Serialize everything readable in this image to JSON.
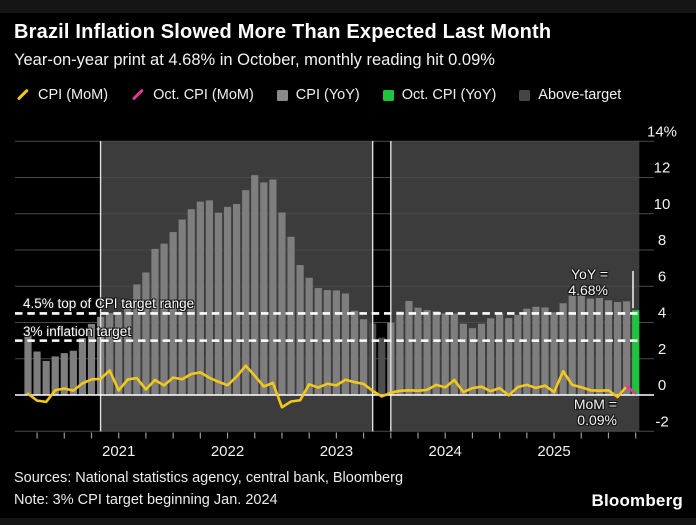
{
  "colors": {
    "background": "#000000",
    "band": "#3c3c3c",
    "grid": "#4a4a4a",
    "zero_line": "#ffffff",
    "bar": "#7e7e7e",
    "bar_muted": "#4e4e4e",
    "bar_highlight_green": "#1ec43b",
    "line_yellow": "#f3c81c",
    "line_magenta": "#e23a96",
    "axis_text": "#f2f2f2",
    "tick": "#999999",
    "vline": "#e0e0e0",
    "dashed_target": "#ffffff"
  },
  "header": {
    "title": "Brazil Inflation Slowed More Than Expected Last Month",
    "subtitle": "Year-on-year print at 4.68% in October, monthly reading hit 0.09%"
  },
  "legend": {
    "items": [
      {
        "label": "CPI (MoM)",
        "swatch": "line",
        "color": "#f3c81c"
      },
      {
        "label": "Oct. CPI (MoM)",
        "swatch": "line",
        "color": "#e23a96"
      },
      {
        "label": "CPI (YoY)",
        "swatch": "square",
        "color": "#8a8a8a"
      },
      {
        "label": "Oct. CPI (YoY)",
        "swatch": "square",
        "color": "#1ec43b"
      },
      {
        "label": "Above-target",
        "swatch": "square",
        "color": "#454545"
      }
    ]
  },
  "annotations": {
    "target_top": "4.5% top of CPI target range",
    "target_mid": "3% inflation target",
    "yoy_line1": "YoY =",
    "yoy_line2": "4.68%",
    "mom_line1": "MoM =",
    "mom_line2": "0.09%"
  },
  "footer": {
    "sources": "Sources: National statistics agency, central bank, Bloomberg",
    "note": "Note: 3% CPI target beginning Jan. 2024",
    "logo": "Bloomberg"
  },
  "chart_data": {
    "type": "bar",
    "title": "Brazil Inflation Slowed More Than Expected Last Month",
    "frequency": "monthly",
    "x_start": "2020-03",
    "x_end": "2025-10",
    "ylim": [
      -2,
      14
    ],
    "grid": true,
    "legend_position": "top",
    "yticks": {
      "values": [
        14,
        12,
        10,
        8,
        6,
        4,
        2,
        0,
        -2
      ],
      "labels": [
        "14%",
        "12",
        "10",
        "8",
        "6",
        "4",
        "2",
        "0",
        "-2"
      ]
    },
    "year_labels": [
      "2021",
      "2022",
      "2023",
      "2024",
      "2025"
    ],
    "target_lines": [
      {
        "value": 4.5,
        "label": "4.5% top of CPI target range"
      },
      {
        "value": 3.0,
        "label": "3% inflation target"
      }
    ],
    "above_target_shading": {
      "bands_month_index": [
        [
          8,
          38
        ],
        [
          40,
          67.4
        ]
      ],
      "gap_month_indices": [
        38,
        39
      ],
      "vline_month_indices": [
        8,
        38,
        40
      ]
    },
    "series": [
      {
        "name": "CPI (YoY)",
        "type": "bar",
        "values": [
          3.3,
          2.4,
          1.88,
          2.13,
          2.31,
          2.44,
          3.14,
          3.92,
          4.31,
          4.52,
          4.56,
          5.2,
          6.1,
          6.76,
          8.06,
          8.35,
          8.99,
          9.68,
          10.25,
          10.67,
          10.74,
          10.06,
          10.38,
          10.54,
          11.3,
          12.13,
          11.73,
          11.89,
          10.07,
          8.73,
          7.17,
          6.47,
          5.9,
          5.79,
          5.77,
          5.6,
          4.65,
          4.18,
          3.94,
          3.16,
          3.99,
          4.61,
          5.19,
          4.82,
          4.68,
          4.62,
          4.51,
          4.5,
          3.93,
          3.69,
          3.93,
          4.23,
          4.5,
          4.24,
          4.42,
          4.76,
          4.87,
          4.83,
          4.56,
          5.06,
          5.48,
          5.53,
          5.32,
          5.35,
          5.23,
          5.13,
          5.17,
          4.68
        ]
      },
      {
        "name": "CPI (MoM)",
        "type": "line",
        "values": [
          0.07,
          -0.31,
          -0.38,
          0.26,
          0.36,
          0.24,
          0.64,
          0.86,
          0.89,
          1.35,
          0.25,
          0.86,
          0.93,
          0.31,
          0.83,
          0.53,
          0.96,
          0.87,
          1.16,
          1.25,
          0.95,
          0.73,
          0.54,
          1.01,
          1.62,
          1.06,
          0.47,
          0.67,
          -0.68,
          -0.36,
          -0.29,
          0.59,
          0.41,
          0.62,
          0.53,
          0.84,
          0.71,
          0.61,
          0.23,
          -0.08,
          0.12,
          0.23,
          0.26,
          0.24,
          0.28,
          0.56,
          0.42,
          0.83,
          0.16,
          0.38,
          0.46,
          0.21,
          0.38,
          -0.02,
          0.44,
          0.56,
          0.39,
          0.52,
          0.16,
          1.31,
          0.56,
          0.43,
          0.26,
          0.24,
          0.26,
          -0.11,
          0.48,
          0.09
        ]
      }
    ],
    "highlight": {
      "month": "2025-10",
      "yoy": 4.68,
      "mom": 0.09
    }
  }
}
